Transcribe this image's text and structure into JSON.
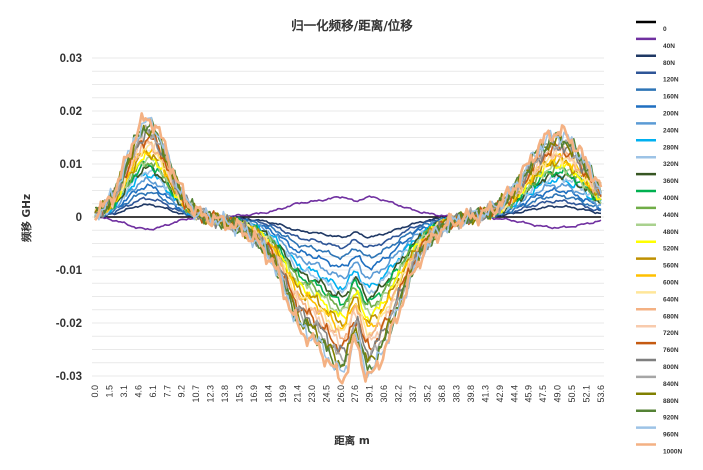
{
  "chart_data": {
    "type": "line",
    "title": "归一化频移/距离/位移",
    "xlabel": "距离 m",
    "ylabel": "频移 GHz",
    "ylim": [
      -0.03,
      0.03
    ],
    "yticks": [
      "0.03",
      "0.02",
      "0.01",
      "0",
      "-0.01",
      "-0.02",
      "-0.03"
    ],
    "xticks": [
      "0.0",
      "1.5",
      "3.1",
      "4.6",
      "6.1",
      "7.7",
      "9.2",
      "10.7",
      "12.3",
      "13.8",
      "15.3",
      "16.9",
      "18.4",
      "19.9",
      "21.4",
      "23.0",
      "24.5",
      "26.0",
      "27.6",
      "29.1",
      "30.6",
      "32.2",
      "33.7",
      "35.2",
      "36.8",
      "38.3",
      "39.8",
      "41.3",
      "42.9",
      "44.4",
      "45.9",
      "47.5",
      "49.0",
      "50.5",
      "52.1",
      "53.6"
    ],
    "grid": true,
    "legend_position": "right",
    "series": [
      {
        "name": "0",
        "color": "#000000",
        "peak": 0.0
      },
      {
        "name": "40N",
        "color": "#7030a0",
        "peak": -0.002
      },
      {
        "name": "80N",
        "color": "#1f3864",
        "peak": 0.002
      },
      {
        "name": "120N",
        "color": "#2e5597",
        "peak": 0.003
      },
      {
        "name": "160N",
        "color": "#2e75b6",
        "peak": 0.004
      },
      {
        "name": "200N",
        "color": "#1f6fc0",
        "peak": 0.005
      },
      {
        "name": "240N",
        "color": "#5b9bd5",
        "peak": 0.006
      },
      {
        "name": "280N",
        "color": "#00b0f0",
        "peak": 0.007
      },
      {
        "name": "320N",
        "color": "#9dc3e6",
        "peak": 0.0075
      },
      {
        "name": "360N",
        "color": "#375623",
        "peak": 0.008
      },
      {
        "name": "400N",
        "color": "#00b050",
        "peak": 0.0085
      },
      {
        "name": "440N",
        "color": "#70ad47",
        "peak": 0.009
      },
      {
        "name": "480N",
        "color": "#a9d18e",
        "peak": 0.0095
      },
      {
        "name": "520N",
        "color": "#ffff00",
        "peak": 0.01
      },
      {
        "name": "560N",
        "color": "#bf9000",
        "peak": 0.0105
      },
      {
        "name": "600N",
        "color": "#ffc000",
        "peak": 0.011
      },
      {
        "name": "640N",
        "color": "#ffe699",
        "peak": 0.0115
      },
      {
        "name": "680N",
        "color": "#f4b183",
        "peak": 0.012
      },
      {
        "name": "720N",
        "color": "#f8cbad",
        "peak": 0.0125
      },
      {
        "name": "760N",
        "color": "#c55a11",
        "peak": 0.013
      },
      {
        "name": "800N",
        "color": "#7f7f7f",
        "peak": 0.0135
      },
      {
        "name": "840N",
        "color": "#a6a6a6",
        "peak": 0.014
      },
      {
        "name": "880N",
        "color": "#808000",
        "peak": 0.0145
      },
      {
        "name": "920N",
        "color": "#548235",
        "peak": 0.015
      },
      {
        "name": "960N",
        "color": "#9dc3e6",
        "peak": 0.0155
      },
      {
        "name": "1000N",
        "color": "#f4b183",
        "peak": 0.016
      }
    ]
  }
}
